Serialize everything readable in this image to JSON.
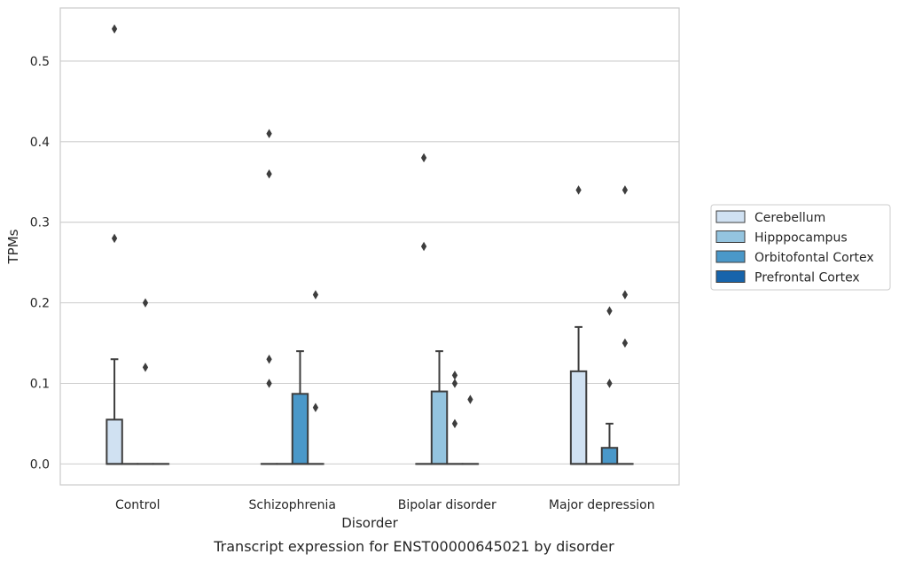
{
  "chart_data": {
    "type": "box",
    "caption": "Transcript expression for ENST00000645021 by disorder",
    "xlabel": "Disorder",
    "ylabel": "TPMs",
    "ylim": [
      -0.026,
      0.566
    ],
    "yticks": [
      0.0,
      0.1,
      0.2,
      0.3,
      0.4,
      0.5
    ],
    "ytick_labels": [
      "0.0",
      "0.1",
      "0.2",
      "0.3",
      "0.4",
      "0.5"
    ],
    "grid": true,
    "legend_position": "right",
    "categories": [
      "Control",
      "Schizophrenia",
      "Bipolar disorder",
      "Major depression"
    ],
    "series": [
      {
        "name": "Cerebellum",
        "color": "#d0e1f2",
        "boxes": [
          {
            "q1": 0,
            "median": 0,
            "q3": 0.055,
            "whislo": 0,
            "whishi": 0.13,
            "fliers": [
              0.28,
              0.54
            ]
          },
          {
            "q1": 0,
            "median": 0,
            "q3": 0,
            "whislo": 0,
            "whishi": 0,
            "fliers": [
              0.1,
              0.13,
              0.36,
              0.41
            ]
          },
          {
            "q1": 0,
            "median": 0,
            "q3": 0,
            "whislo": 0,
            "whishi": 0,
            "fliers": [
              0.27,
              0.38
            ]
          },
          {
            "q1": 0,
            "median": 0,
            "q3": 0.115,
            "whislo": 0,
            "whishi": 0.17,
            "fliers": [
              0.34
            ]
          }
        ]
      },
      {
        "name": "Hipppocampus",
        "color": "#94c4df",
        "boxes": [
          {
            "q1": 0,
            "median": 0,
            "q3": 0,
            "whislo": 0,
            "whishi": 0,
            "fliers": []
          },
          {
            "q1": 0,
            "median": 0,
            "q3": 0,
            "whislo": 0,
            "whishi": 0,
            "fliers": []
          },
          {
            "q1": 0,
            "median": 0,
            "q3": 0.09,
            "whislo": 0,
            "whishi": 0.14,
            "fliers": []
          },
          {
            "q1": 0,
            "median": 0,
            "q3": 0,
            "whislo": 0,
            "whishi": 0,
            "fliers": []
          }
        ]
      },
      {
        "name": "Orbitofontal Cortex",
        "color": "#4a98c9",
        "boxes": [
          {
            "q1": 0,
            "median": 0,
            "q3": 0,
            "whislo": 0,
            "whishi": 0,
            "fliers": [
              0.12,
              0.2
            ]
          },
          {
            "q1": 0,
            "median": 0,
            "q3": 0.087,
            "whislo": 0,
            "whishi": 0.14,
            "fliers": []
          },
          {
            "q1": 0,
            "median": 0,
            "q3": 0,
            "whislo": 0,
            "whishi": 0,
            "fliers": [
              0.05,
              0.1,
              0.11
            ]
          },
          {
            "q1": 0,
            "median": 0,
            "q3": 0.02,
            "whislo": 0,
            "whishi": 0.05,
            "fliers": [
              0.1,
              0.19
            ]
          }
        ]
      },
      {
        "name": "Prefrontal Cortex",
        "color": "#1764ab",
        "boxes": [
          {
            "q1": 0,
            "median": 0,
            "q3": 0,
            "whislo": 0,
            "whishi": 0,
            "fliers": []
          },
          {
            "q1": 0,
            "median": 0,
            "q3": 0,
            "whislo": 0,
            "whishi": 0,
            "fliers": [
              0.07,
              0.21
            ]
          },
          {
            "q1": 0,
            "median": 0,
            "q3": 0,
            "whislo": 0,
            "whishi": 0,
            "fliers": [
              0.08
            ]
          },
          {
            "q1": 0,
            "median": 0,
            "q3": 0,
            "whislo": 0,
            "whishi": 0,
            "fliers": [
              0.15,
              0.21,
              0.34
            ]
          }
        ]
      }
    ]
  }
}
